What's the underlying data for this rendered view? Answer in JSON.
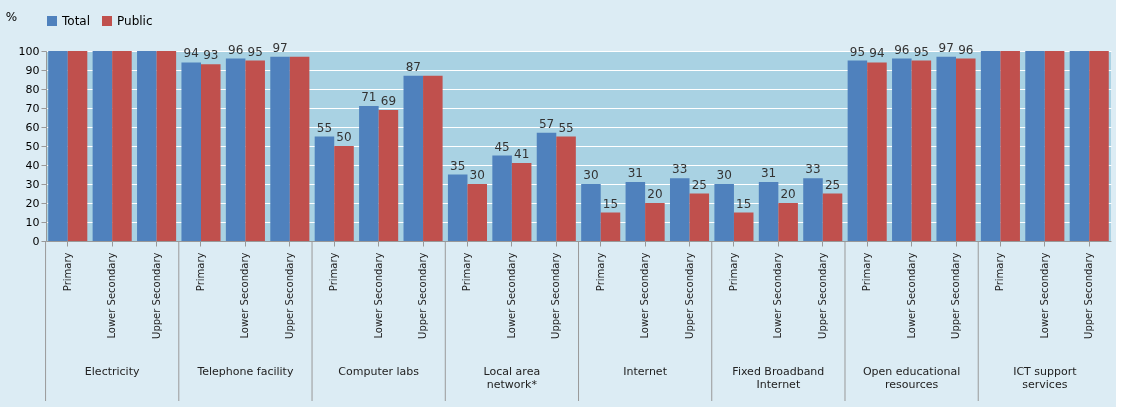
{
  "chart_data": {
    "type": "bar",
    "ylabel": "%",
    "categories": [
      "Primary",
      "Lower Secondary",
      "Upper Secondary",
      "Primary",
      "Lower Secondary",
      "Upper Secondary",
      "Primary",
      "Lower Secondary",
      "Upper Secondary",
      "Primary",
      "Lower Secondary",
      "Upper Secondary",
      "Primary",
      "Lower Secondary",
      "Upper Secondary",
      "Primary",
      "Lower Secondary",
      "Upper Secondary",
      "Primary",
      "Lower Secondary",
      "Upper Secondary",
      "Primary",
      "Lower Secondary",
      "Upper Secondary"
    ],
    "series": [
      {
        "name": "Total",
        "color": "#4f81bd",
        "values": [
          100,
          100,
          100,
          94,
          96,
          97,
          55,
          71,
          87,
          35,
          45,
          57,
          30,
          31,
          33,
          30,
          31,
          33,
          95,
          96,
          97,
          100,
          100,
          100
        ],
        "value_labels": [
          null,
          null,
          null,
          "94",
          "96",
          "97",
          "55",
          "71",
          "87",
          "35",
          "45",
          "57",
          "30",
          "31",
          "33",
          "30",
          "31",
          "33",
          "95",
          "96",
          "97",
          null,
          null,
          null
        ]
      },
      {
        "name": "Public",
        "color": "#c0504d",
        "values": [
          100,
          100,
          100,
          93,
          95,
          97,
          50,
          69,
          87,
          30,
          41,
          55,
          15,
          20,
          25,
          15,
          20,
          25,
          94,
          95,
          96,
          100,
          100,
          100
        ],
        "value_labels": [
          null,
          null,
          null,
          "93",
          "95",
          null,
          "50",
          "69",
          null,
          "30",
          "41",
          "55",
          "15",
          "20",
          "25",
          "15",
          "20",
          "25",
          "94",
          "95",
          "96",
          null,
          null,
          null
        ]
      }
    ],
    "annotations": [
      "Electricity",
      "Telephone facility",
      "Computer labs",
      "Local area network*",
      "Internet",
      "Fixed Broadband Internet",
      "Open educational resources",
      "ICT support services"
    ],
    "ylim": [
      0,
      100
    ],
    "yticks": [
      0,
      10,
      20,
      30,
      40,
      50,
      60,
      70,
      80,
      90,
      100
    ],
    "grid": "y",
    "legend": "top"
  }
}
